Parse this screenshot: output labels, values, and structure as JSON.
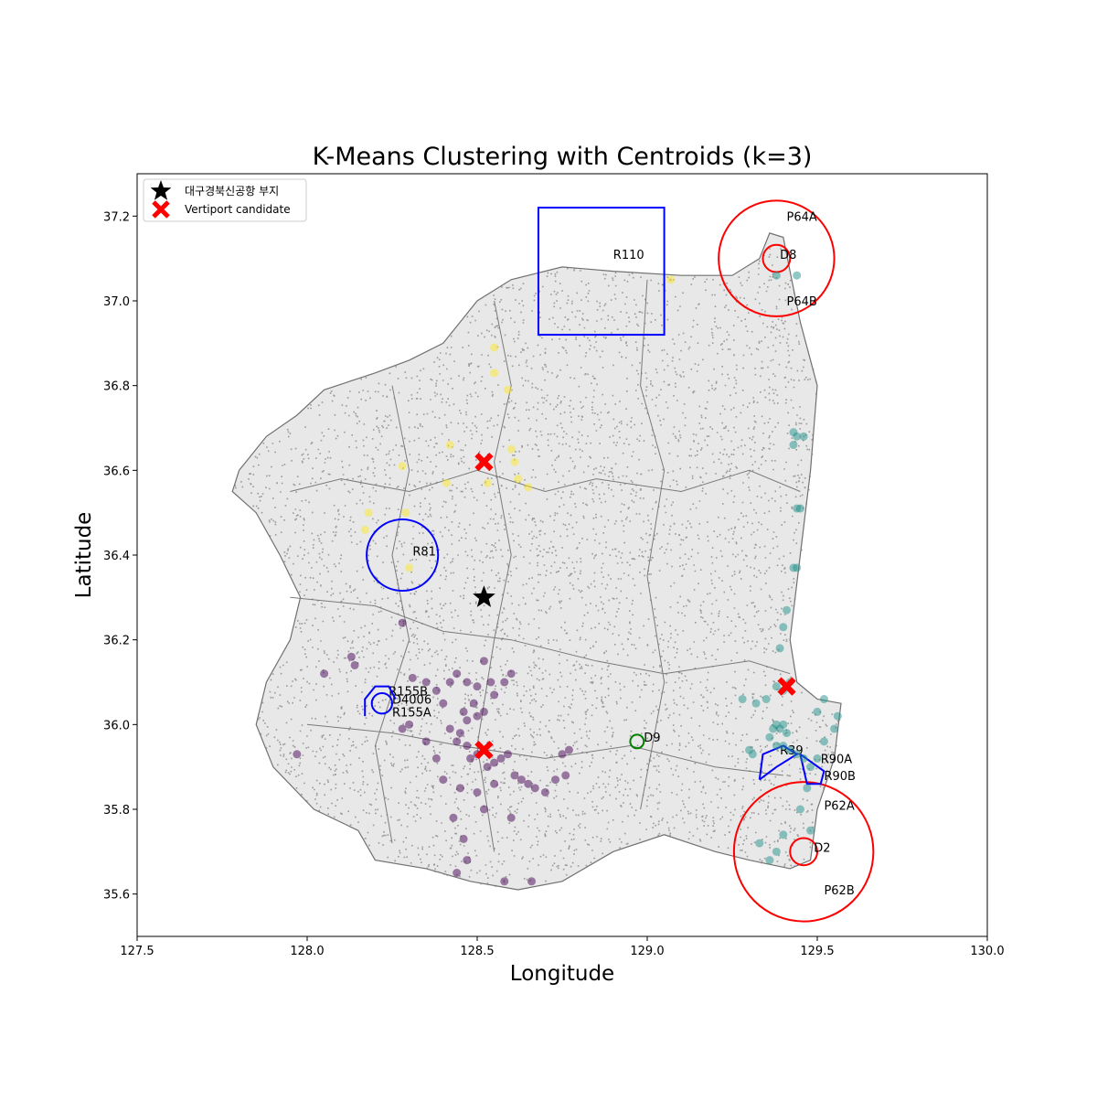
{
  "chart_data": {
    "type": "scatter",
    "title": "K-Means Clustering with Centroids (k=3)",
    "xlabel": "Longitude",
    "ylabel": "Latitude",
    "xlim": [
      127.5,
      130.0
    ],
    "ylim": [
      35.5,
      37.3
    ],
    "xticks": [
      "127.5",
      "128.0",
      "128.5",
      "129.0",
      "129.5",
      "130.0"
    ],
    "yticks": [
      "35.6",
      "35.8",
      "36.0",
      "36.2",
      "36.4",
      "36.6",
      "36.8",
      "37.0",
      "37.2"
    ],
    "grid": false,
    "legend": {
      "position": "top-left",
      "entries": [
        {
          "label": "대구경북신공항 부지",
          "marker": "star",
          "color": "#000000"
        },
        {
          "label": "Vertiport candidate",
          "marker": "x",
          "color": "#ff0000"
        }
      ]
    },
    "airport_site": {
      "x": 128.52,
      "y": 36.3
    },
    "vertiport_candidates": [
      {
        "x": 128.52,
        "y": 36.62
      },
      {
        "x": 129.41,
        "y": 36.09
      },
      {
        "x": 128.52,
        "y": 35.94
      }
    ],
    "clusters": [
      {
        "color": "#fde725",
        "points": [
          [
            128.55,
            36.89
          ],
          [
            128.55,
            36.83
          ],
          [
            128.59,
            36.79
          ],
          [
            128.42,
            36.66
          ],
          [
            128.6,
            36.65
          ],
          [
            128.61,
            36.62
          ],
          [
            128.62,
            36.58
          ],
          [
            128.65,
            36.56
          ],
          [
            128.41,
            36.57
          ],
          [
            128.53,
            36.57
          ],
          [
            128.28,
            36.61
          ],
          [
            128.18,
            36.5
          ],
          [
            128.29,
            36.5
          ],
          [
            128.17,
            36.46
          ],
          [
            128.3,
            36.37
          ],
          [
            129.07,
            37.05
          ]
        ]
      },
      {
        "color": "#440154",
        "points": [
          [
            128.13,
            36.16
          ],
          [
            128.05,
            36.12
          ],
          [
            128.14,
            36.14
          ],
          [
            128.28,
            36.24
          ],
          [
            128.31,
            36.11
          ],
          [
            128.35,
            36.1
          ],
          [
            128.38,
            36.08
          ],
          [
            128.42,
            36.1
          ],
          [
            128.44,
            36.12
          ],
          [
            128.47,
            36.1
          ],
          [
            128.5,
            36.09
          ],
          [
            128.52,
            36.15
          ],
          [
            128.54,
            36.1
          ],
          [
            128.55,
            36.07
          ],
          [
            128.58,
            36.1
          ],
          [
            128.6,
            36.12
          ],
          [
            128.46,
            36.03
          ],
          [
            128.47,
            36.01
          ],
          [
            128.49,
            36.05
          ],
          [
            128.5,
            36.02
          ],
          [
            128.52,
            36.03
          ],
          [
            128.4,
            36.05
          ],
          [
            128.42,
            35.99
          ],
          [
            128.44,
            35.96
          ],
          [
            128.45,
            35.98
          ],
          [
            128.47,
            35.95
          ],
          [
            128.48,
            35.92
          ],
          [
            128.5,
            35.93
          ],
          [
            128.53,
            35.9
          ],
          [
            128.55,
            35.91
          ],
          [
            128.57,
            35.92
          ],
          [
            128.59,
            35.93
          ],
          [
            128.61,
            35.88
          ],
          [
            128.63,
            35.87
          ],
          [
            128.65,
            35.86
          ],
          [
            128.67,
            35.85
          ],
          [
            128.7,
            35.84
          ],
          [
            128.73,
            35.87
          ],
          [
            128.76,
            35.88
          ],
          [
            128.77,
            35.94
          ],
          [
            128.75,
            35.93
          ],
          [
            128.38,
            35.92
          ],
          [
            128.4,
            35.87
          ],
          [
            128.45,
            35.85
          ],
          [
            128.5,
            35.84
          ],
          [
            128.52,
            35.8
          ],
          [
            128.43,
            35.78
          ],
          [
            128.46,
            35.73
          ],
          [
            128.47,
            35.68
          ],
          [
            128.44,
            35.65
          ],
          [
            128.58,
            35.63
          ],
          [
            128.66,
            35.63
          ],
          [
            128.6,
            35.78
          ],
          [
            127.97,
            35.93
          ],
          [
            128.28,
            35.99
          ],
          [
            128.35,
            35.96
          ],
          [
            128.3,
            36.0
          ],
          [
            128.55,
            35.86
          ]
        ]
      },
      {
        "color": "#21918c",
        "points": [
          [
            129.38,
            37.06
          ],
          [
            129.44,
            37.06
          ],
          [
            129.43,
            36.69
          ],
          [
            129.44,
            36.68
          ],
          [
            129.46,
            36.68
          ],
          [
            129.43,
            36.66
          ],
          [
            129.44,
            36.51
          ],
          [
            129.45,
            36.51
          ],
          [
            129.43,
            36.37
          ],
          [
            129.44,
            36.37
          ],
          [
            129.41,
            36.27
          ],
          [
            129.4,
            36.23
          ],
          [
            129.39,
            36.18
          ],
          [
            129.38,
            36.09
          ],
          [
            129.4,
            36.08
          ],
          [
            129.42,
            36.1
          ],
          [
            129.35,
            36.06
          ],
          [
            129.32,
            36.05
          ],
          [
            129.28,
            36.06
          ],
          [
            129.37,
            35.99
          ],
          [
            129.38,
            36.0
          ],
          [
            129.39,
            35.99
          ],
          [
            129.4,
            36.0
          ],
          [
            129.41,
            35.98
          ],
          [
            129.36,
            35.97
          ],
          [
            129.38,
            35.95
          ],
          [
            129.4,
            35.95
          ],
          [
            129.42,
            35.94
          ],
          [
            129.44,
            35.93
          ],
          [
            129.46,
            35.92
          ],
          [
            129.48,
            35.9
          ],
          [
            129.5,
            35.92
          ],
          [
            129.52,
            35.96
          ],
          [
            129.55,
            35.99
          ],
          [
            129.56,
            36.02
          ],
          [
            129.5,
            36.03
          ],
          [
            129.52,
            36.06
          ],
          [
            129.47,
            35.85
          ],
          [
            129.45,
            35.8
          ],
          [
            129.48,
            35.75
          ],
          [
            129.4,
            35.74
          ],
          [
            129.38,
            35.7
          ],
          [
            129.33,
            35.72
          ],
          [
            129.36,
            35.68
          ],
          [
            129.31,
            35.93
          ],
          [
            129.3,
            35.94
          ]
        ]
      }
    ],
    "zones": [
      {
        "label": "R110",
        "shape": "rectangle",
        "color": "#0000ff",
        "x0": 128.68,
        "x1": 129.05,
        "y0": 36.92,
        "y1": 37.22,
        "label_x": 128.9,
        "label_y": 37.11
      },
      {
        "label": "P64A",
        "shape": "circle",
        "color": "#ff0000",
        "cx": 129.38,
        "cy": 37.1,
        "r": 0.17,
        "label_x": 129.41,
        "label_y": 37.2
      },
      {
        "label": "D8",
        "shape": "circle",
        "color": "#ff0000",
        "cx": 129.38,
        "cy": 37.1,
        "r": 0.04,
        "label_x": 129.39,
        "label_y": 37.11
      },
      {
        "label": "P64B",
        "shape": "text",
        "color": "#000000",
        "label_x": 129.41,
        "label_y": 37.0
      },
      {
        "label": "R81",
        "shape": "circle",
        "color": "#0000ff",
        "cx": 128.28,
        "cy": 36.4,
        "r": 0.105,
        "label_x": 128.31,
        "label_y": 36.41
      },
      {
        "label": "R155B",
        "shape": "text",
        "color": "#000000",
        "label_x": 128.24,
        "label_y": 36.08
      },
      {
        "label": "D4006",
        "shape": "circle",
        "color": "#0000ff",
        "cx": 128.22,
        "cy": 36.05,
        "r": 0.03,
        "label_x": 128.25,
        "label_y": 36.06
      },
      {
        "label": "R155A",
        "shape": "text",
        "color": "#000000",
        "label_x": 128.25,
        "label_y": 36.03
      },
      {
        "label": "D9",
        "shape": "circle",
        "color": "#008000",
        "cx": 128.97,
        "cy": 35.96,
        "r": 0.02,
        "label_x": 128.99,
        "label_y": 35.97
      },
      {
        "label": "R39",
        "shape": "text",
        "color": "#000000",
        "label_x": 129.39,
        "label_y": 35.94
      },
      {
        "label": "R90A",
        "shape": "text",
        "color": "#000000",
        "label_x": 129.51,
        "label_y": 35.92
      },
      {
        "label": "R90B",
        "shape": "text",
        "color": "#000000",
        "label_x": 129.52,
        "label_y": 35.88
      },
      {
        "label": "P62A",
        "shape": "text",
        "color": "#000000",
        "label_x": 129.52,
        "label_y": 35.81
      },
      {
        "label": "D2",
        "shape": "circle",
        "color": "#ff0000",
        "cx": 129.46,
        "cy": 35.7,
        "r": 0.04,
        "label_x": 129.49,
        "label_y": 35.71
      },
      {
        "label": "P62B",
        "shape": "circle",
        "color": "#ff0000",
        "cx": 129.46,
        "cy": 35.7,
        "r": 0.205,
        "label_x": 129.52,
        "label_y": 35.61
      }
    ]
  }
}
